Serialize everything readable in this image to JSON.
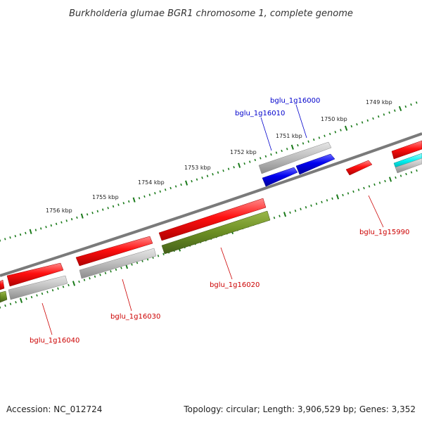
{
  "title": "Burkholderia glumae BGR1 chromosome 1, complete genome",
  "footer": {
    "accession": "Accession: NC_012724",
    "summary": "Topology: circular; Length: 3,906,529 bp; Genes: 3,352"
  },
  "colors": {
    "backbone": "#7a7a7a",
    "tick": "#1a7a1a",
    "label_red": "#cc0000",
    "label_blue": "#0000cc",
    "cds_red": "#ff0000",
    "cds_blue": "#0000ee",
    "cds_cyan": "#00e8e8",
    "cds_olive": "#6b8e23",
    "cds_grey": "#b8b8b8"
  },
  "kbp_labels": [
    "1749 kbp",
    "1750 kbp",
    "1751 kbp",
    "1752 kbp",
    "1753 kbp",
    "1754 kbp",
    "1755 kbp",
    "1756 kbp"
  ],
  "gene_labels": [
    {
      "id": "bglu_1g16000",
      "color": "blue"
    },
    {
      "id": "bglu_1g16010",
      "color": "blue"
    },
    {
      "id": "bglu_1g15990",
      "color": "red"
    },
    {
      "id": "bglu_1g16020",
      "color": "red"
    },
    {
      "id": "bglu_1g16030",
      "color": "red"
    },
    {
      "id": "bglu_1g16040",
      "color": "red"
    }
  ]
}
